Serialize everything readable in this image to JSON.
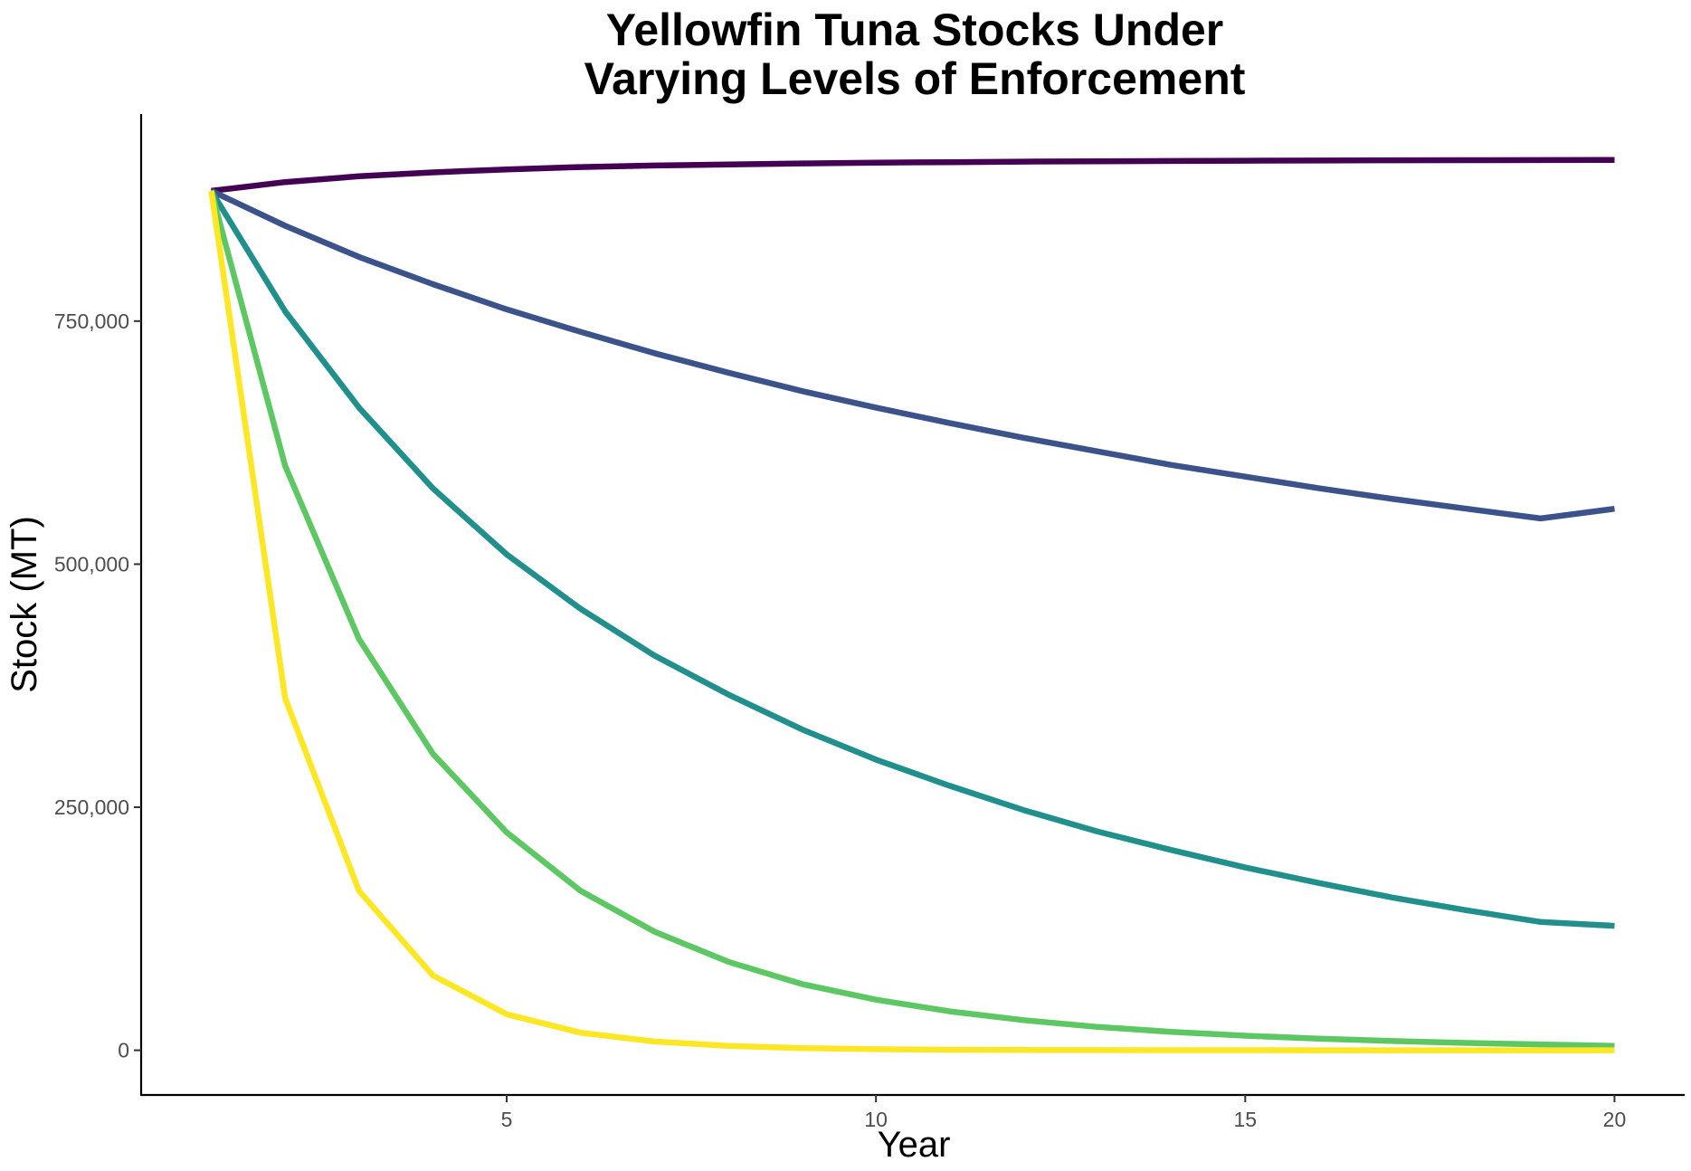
{
  "chart_data": {
    "type": "line",
    "title_lines": [
      "Yellowfin Tuna Stocks Under",
      "Varying Levels of Enforcement"
    ],
    "xlabel": "Year",
    "ylabel": "Stock (MT)",
    "xlim": [
      0.05,
      20.95
    ],
    "ylim": [
      -46000,
      963000
    ],
    "x_ticks": [
      5,
      10,
      15,
      20
    ],
    "x_tick_labels": [
      "5",
      "10",
      "15",
      "20"
    ],
    "y_ticks": [
      0,
      250000,
      500000,
      750000
    ],
    "y_tick_labels": [
      "0",
      "250,000",
      "500,000",
      "750,000"
    ],
    "grid": false,
    "legend": "none",
    "x": [
      1,
      2,
      3,
      4,
      5,
      6,
      7,
      8,
      9,
      10,
      11,
      12,
      13,
      14,
      15,
      16,
      17,
      18,
      19,
      20
    ],
    "series": [
      {
        "color": "#440154",
        "values": [
          884000,
          893000,
          899000,
          903000,
          906000,
          908500,
          910000,
          911200,
          912200,
          913000,
          913500,
          914000,
          914400,
          914700,
          915000,
          915200,
          915400,
          915500,
          915600,
          915700
        ]
      },
      {
        "color": "#3b528b",
        "values": [
          884000,
          848000,
          816000,
          788000,
          762000,
          739000,
          717000,
          697000,
          678000,
          661000,
          645000,
          630000,
          616000,
          602000,
          590000,
          578000,
          567000,
          557000,
          547000,
          557000
        ]
      },
      {
        "color": "#21908c",
        "values": [
          884000,
          760000,
          661000,
          578000,
          510000,
          454000,
          406000,
          366000,
          330000,
          299000,
          272000,
          247000,
          225000,
          206000,
          188000,
          172000,
          157000,
          144000,
          132000,
          128000
        ]
      },
      {
        "color": "#5dc863",
        "values": [
          884000,
          601000,
          423000,
          305000,
          224000,
          164000,
          122000,
          91000,
          68000,
          52000,
          40000,
          31000,
          24000,
          19000,
          15000,
          12000,
          9500,
          7500,
          6000,
          4500
        ]
      },
      {
        "color": "#fde725",
        "values": [
          884000,
          362000,
          164000,
          77000,
          37000,
          18000,
          9000,
          4500,
          2200,
          1100,
          550,
          280,
          140,
          70,
          35,
          18,
          9,
          5,
          3,
          2
        ]
      }
    ]
  }
}
